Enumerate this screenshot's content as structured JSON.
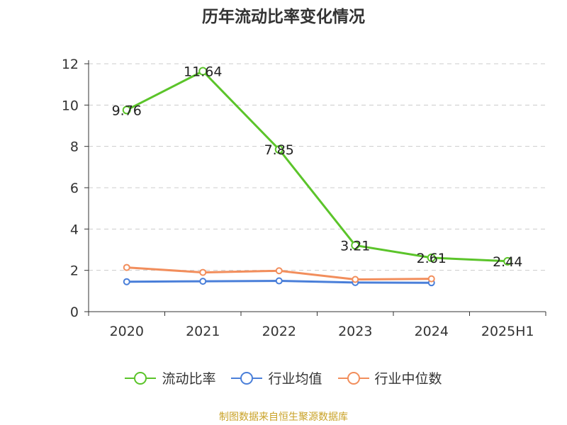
{
  "chart_data": {
    "type": "line",
    "title": "历年流动比率变化情况",
    "categories": [
      "2020",
      "2021",
      "2022",
      "2023",
      "2024",
      "2025H1"
    ],
    "ylim": [
      0,
      12
    ],
    "yticks": [
      "0",
      "2",
      "4",
      "6",
      "8",
      "10",
      "12"
    ],
    "grid": true,
    "legend_position": "bottom",
    "series": [
      {
        "name": "流动比率",
        "color": "#5bc42a",
        "values": [
          9.76,
          11.64,
          7.85,
          3.21,
          2.61,
          2.44
        ],
        "labels": [
          "9.76",
          "11.64",
          "7.85",
          "3.21",
          "2.61",
          "2.44"
        ]
      },
      {
        "name": "行业均值",
        "color": "#4a7fd9",
        "values": [
          1.45,
          1.47,
          1.49,
          1.41,
          1.4,
          null
        ]
      },
      {
        "name": "行业中位数",
        "color": "#f28e5c",
        "values": [
          2.14,
          1.9,
          1.98,
          1.56,
          1.59,
          null
        ]
      }
    ]
  },
  "source_text": "制图数据来自恒生聚源数据库"
}
